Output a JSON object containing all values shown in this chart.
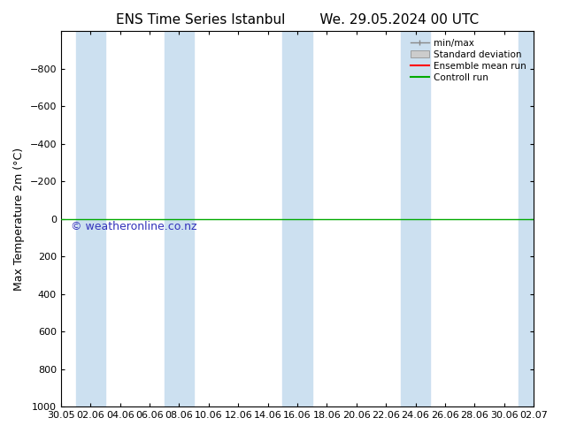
{
  "title_left": "ENS Time Series Istanbul",
  "title_right": "We. 29.05.2024 00 UTC",
  "ylabel": "Max Temperature 2m (°C)",
  "ylim_bottom": 1000,
  "ylim_top": -1000,
  "yticks": [
    -800,
    -600,
    -400,
    -200,
    0,
    200,
    400,
    600,
    800,
    1000
  ],
  "xtick_labels": [
    "30.05",
    "02.06",
    "04.06",
    "06.06",
    "08.06",
    "10.06",
    "12.06",
    "14.06",
    "16.06",
    "18.06",
    "20.06",
    "22.06",
    "24.06",
    "26.06",
    "28.06",
    "30.06",
    "02.07"
  ],
  "xlim_min": 0,
  "xlim_max": 16,
  "blue_bands": [
    [
      0.5,
      1.5
    ],
    [
      3.5,
      4.5
    ],
    [
      7.5,
      8.5
    ],
    [
      11.5,
      12.5
    ],
    [
      15.5,
      16.0
    ]
  ],
  "green_line_y": 0,
  "background_color": "#ffffff",
  "blue_band_color": "#cce0f0",
  "green_line_color": "#00aa00",
  "red_line_color": "#ff0000",
  "legend_entries": [
    "min/max",
    "Standard deviation",
    "Ensemble mean run",
    "Controll run"
  ],
  "watermark": "© weatheronline.co.nz",
  "watermark_color": "#3333bb",
  "title_fontsize": 11,
  "ylabel_fontsize": 9,
  "tick_fontsize": 8,
  "watermark_fontsize": 9
}
